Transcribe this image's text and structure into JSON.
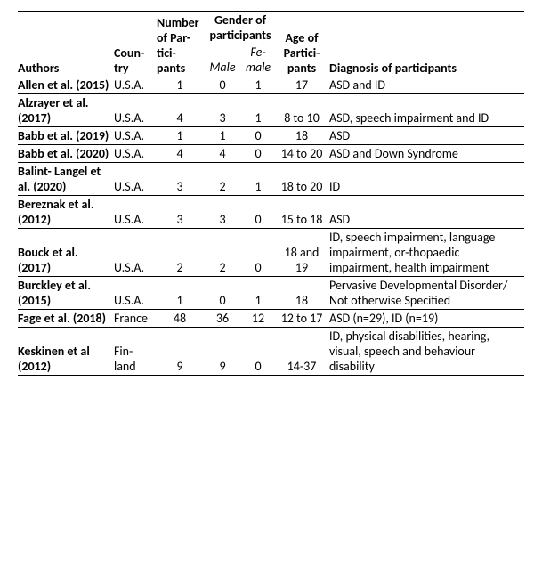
{
  "columns": {
    "authors": "Authors",
    "country": "Coun-try",
    "n": "Number of Par-tici-pants",
    "gender": "Gender of participants",
    "male": "Male",
    "female": "Fe-male",
    "age": "Age of Partici-pants",
    "diagnosis": "Diagnosis of participants"
  },
  "rows": [
    {
      "authors": "Allen et al. (2015)",
      "country": "U.S.A.",
      "n": "1",
      "male": "0",
      "female": "1",
      "age": "17",
      "diagnosis": "ASD and ID"
    },
    {
      "authors": "Alzrayer et al. (2017)",
      "country": "U.S.A.",
      "n": "4",
      "male": "3",
      "female": "1",
      "age": "8 to 10",
      "diagnosis": "ASD, speech impairment and ID"
    },
    {
      "authors": "Babb et al. (2019)",
      "country": "U.S.A.",
      "n": "1",
      "male": "1",
      "female": "0",
      "age": "18",
      "diagnosis": "ASD"
    },
    {
      "authors": "Babb et al. (2020)",
      "country": "U.S.A.",
      "n": "4",
      "male": "4",
      "female": "0",
      "age": "14 to 20",
      "diagnosis": "ASD and Down Syndrome"
    },
    {
      "authors": "Balint- Langel et al. (2020)",
      "country": "U.S.A.",
      "n": "3",
      "male": "2",
      "female": "1",
      "age": "18 to 20",
      "diagnosis": "ID"
    },
    {
      "authors": "Bereznak et al. (2012)",
      "country": "U.S.A.",
      "n": "3",
      "male": "3",
      "female": "0",
      "age": "15 to 18",
      "diagnosis": "ASD"
    },
    {
      "authors": "Bouck et al. (2017)",
      "country": "U.S.A.",
      "n": "2",
      "male": "2",
      "female": "0",
      "age": "18 and 19",
      "diagnosis": "ID, speech impairment, language impairment, or-thopaedic impairment, health impairment"
    },
    {
      "authors": "Burckley et al. (2015)",
      "country": "U.S.A.",
      "n": "1",
      "male": "0",
      "female": "1",
      "age": "18",
      "diagnosis": "Pervasive Developmental Disorder/ Not otherwise Specified"
    },
    {
      "authors": "Fage et al. (2018)",
      "country": "France",
      "n": "48",
      "male": "36",
      "female": "12",
      "age": "12 to 17",
      "diagnosis": "ASD (n=29), ID (n=19)"
    },
    {
      "authors": "Keskinen et al (2012)",
      "country": "Fin-land",
      "n": "9",
      "male": "9",
      "female": "0",
      "age": "14-37",
      "diagnosis": "ID, physical disabilities, hearing, visual, speech and behaviour disability"
    }
  ]
}
